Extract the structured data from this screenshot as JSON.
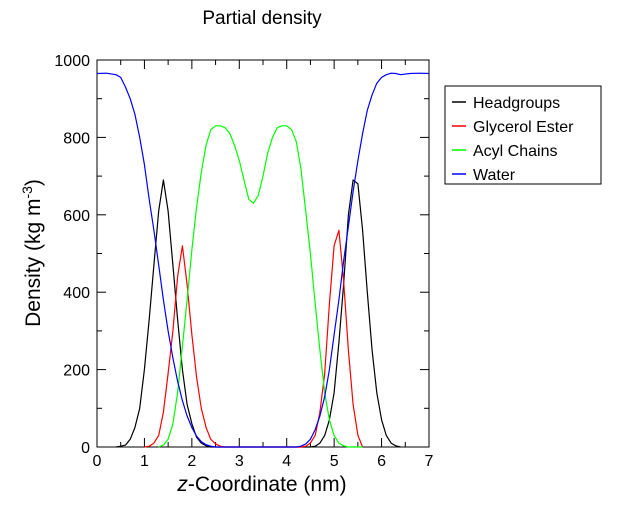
{
  "chart_data": {
    "type": "line",
    "title": "Partial density",
    "xlabel": {
      "italic": "z",
      "rest": "-Coordinate (nm)"
    },
    "ylabel": {
      "main": "Density (kg m",
      "sup": "-3",
      "close": ")"
    },
    "xlim": [
      0,
      7
    ],
    "ylim": [
      0,
      1000
    ],
    "xticks": [
      "0",
      "1",
      "2",
      "3",
      "4",
      "5",
      "6",
      "7"
    ],
    "yticks": [
      "0",
      "200",
      "400",
      "600",
      "800",
      "1000"
    ],
    "grid": false,
    "legend_position": "right",
    "series": [
      {
        "name": "Headgroups",
        "color": "#000000",
        "x": [
          0.4,
          0.5,
          0.6,
          0.7,
          0.8,
          0.9,
          1.0,
          1.1,
          1.2,
          1.3,
          1.4,
          1.5,
          1.6,
          1.7,
          1.8,
          1.9,
          2.0,
          2.1,
          2.2,
          2.3,
          2.4,
          2.5,
          2.6,
          2.7,
          4.4,
          4.5,
          4.6,
          4.7,
          4.8,
          4.9,
          5.0,
          5.1,
          5.2,
          5.3,
          5.4,
          5.5,
          5.6,
          5.7,
          5.8,
          5.9,
          6.0,
          6.1,
          6.2,
          6.3,
          6.4
        ],
        "y": [
          0,
          2,
          5,
          20,
          50,
          100,
          200,
          330,
          470,
          610,
          690,
          610,
          470,
          330,
          200,
          110,
          60,
          25,
          10,
          3,
          0,
          0,
          0,
          0,
          0,
          0,
          2,
          10,
          30,
          70,
          140,
          270,
          420,
          600,
          690,
          680,
          560,
          400,
          250,
          140,
          70,
          30,
          10,
          3,
          0
        ]
      },
      {
        "name": "Glycerol Ester",
        "color": "#ff0000",
        "x": [
          1.0,
          1.1,
          1.2,
          1.3,
          1.4,
          1.5,
          1.6,
          1.7,
          1.8,
          1.9,
          2.0,
          2.1,
          2.2,
          2.3,
          2.4,
          2.5,
          2.6,
          2.7,
          4.3,
          4.4,
          4.5,
          4.6,
          4.7,
          4.8,
          4.9,
          5.0,
          5.1,
          5.2,
          5.3,
          5.4,
          5.5,
          5.6
        ],
        "y": [
          0,
          2,
          10,
          30,
          90,
          190,
          300,
          440,
          520,
          420,
          290,
          180,
          100,
          50,
          20,
          8,
          2,
          0,
          0,
          2,
          10,
          30,
          90,
          190,
          370,
          520,
          560,
          430,
          250,
          110,
          30,
          0
        ]
      },
      {
        "name": "Acyl Chains",
        "color": "#00ff00",
        "x": [
          1.3,
          1.4,
          1.5,
          1.6,
          1.7,
          1.8,
          1.9,
          2.0,
          2.1,
          2.2,
          2.3,
          2.4,
          2.5,
          2.6,
          2.7,
          2.8,
          2.9,
          3.0,
          3.1,
          3.2,
          3.3,
          3.4,
          3.5,
          3.6,
          3.7,
          3.8,
          3.9,
          4.0,
          4.1,
          4.2,
          4.3,
          4.4,
          4.5,
          4.6,
          4.7,
          4.8,
          4.9,
          5.0,
          5.1,
          5.2,
          5.3,
          5.4,
          5.5,
          5.6
        ],
        "y": [
          0,
          5,
          20,
          60,
          140,
          260,
          380,
          510,
          620,
          710,
          780,
          820,
          830,
          830,
          825,
          810,
          780,
          740,
          690,
          640,
          630,
          650,
          700,
          760,
          800,
          825,
          830,
          830,
          820,
          790,
          720,
          610,
          500,
          370,
          250,
          140,
          70,
          30,
          10,
          3,
          0,
          0,
          0,
          0
        ]
      },
      {
        "name": "Water",
        "color": "#0000ff",
        "x": [
          0,
          0.2,
          0.4,
          0.5,
          0.6,
          0.7,
          0.8,
          0.9,
          1.0,
          1.1,
          1.2,
          1.3,
          1.4,
          1.5,
          1.6,
          1.7,
          1.8,
          1.9,
          2.0,
          2.1,
          2.2,
          2.3,
          2.4,
          2.5,
          2.6,
          2.7,
          2.8,
          4.2,
          4.3,
          4.4,
          4.5,
          4.6,
          4.7,
          4.8,
          4.9,
          5.0,
          5.1,
          5.2,
          5.3,
          5.4,
          5.5,
          5.6,
          5.7,
          5.8,
          5.9,
          6.0,
          6.1,
          6.2,
          6.3,
          6.4,
          6.6,
          6.8,
          7.0
        ],
        "y": [
          965,
          966,
          962,
          955,
          930,
          900,
          860,
          800,
          730,
          640,
          560,
          470,
          380,
          300,
          230,
          170,
          120,
          80,
          50,
          28,
          14,
          6,
          2,
          0,
          0,
          0,
          0,
          0,
          2,
          8,
          20,
          45,
          80,
          130,
          200,
          290,
          380,
          480,
          570,
          660,
          740,
          810,
          870,
          910,
          940,
          955,
          962,
          966,
          965,
          962,
          965,
          966,
          965
        ]
      }
    ]
  }
}
